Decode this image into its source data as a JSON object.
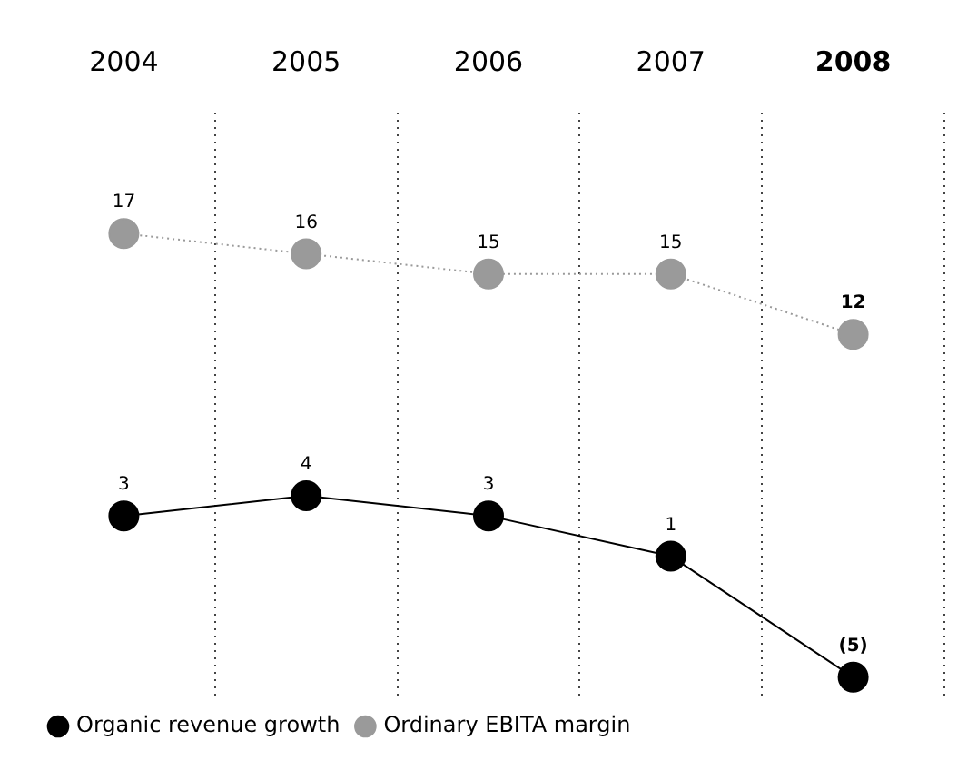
{
  "chart_data": {
    "type": "line",
    "categories": [
      "2004",
      "2005",
      "2006",
      "2007",
      "2008"
    ],
    "series": [
      {
        "name": "Organic revenue growth",
        "color": "#000000",
        "values": [
          3,
          4,
          3,
          1,
          -5
        ],
        "value_labels": [
          "3",
          "4",
          "3",
          "1",
          "(5)"
        ],
        "line_style": "solid"
      },
      {
        "name": "Ordinary EBITA margin",
        "color": "#9a9a9a",
        "values": [
          17,
          16,
          15,
          15,
          12
        ],
        "value_labels": [
          "17",
          "16",
          "15",
          "15",
          "12"
        ],
        "line_style": "dotted"
      }
    ],
    "ylim": [
      -6,
      23
    ],
    "tick_labels": "x",
    "grid": "x",
    "legend": "bottom left",
    "marker": "circle"
  }
}
